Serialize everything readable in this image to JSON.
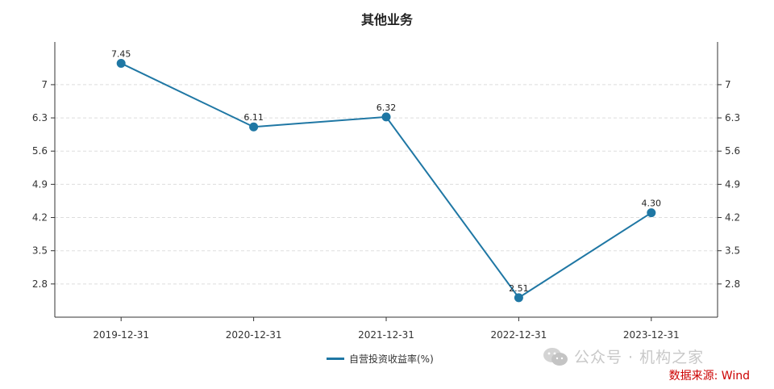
{
  "chart_data": {
    "type": "line",
    "title": "其他业务",
    "categories": [
      "2019-12-31",
      "2020-12-31",
      "2021-12-31",
      "2022-12-31",
      "2023-12-31"
    ],
    "series": [
      {
        "name": "自营投资收益率(%)",
        "values": [
          7.45,
          6.11,
          6.32,
          2.51,
          4.3
        ],
        "labels": [
          "7.45",
          "6.11",
          "6.32",
          "2.51",
          "4.30"
        ],
        "color": "#1f77a4"
      }
    ],
    "yticks": [
      "2.8",
      "3.5",
      "4.2",
      "4.9",
      "5.6",
      "6.3",
      "7"
    ],
    "ylim": [
      2.1,
      7.9
    ],
    "grid": true,
    "secondary_axis_mirror": true,
    "legend_position": "bottom-center"
  },
  "watermark": {
    "text": "公众号 · 机构之家",
    "icon": "wechat-icon"
  },
  "source": "数据来源: Wind"
}
